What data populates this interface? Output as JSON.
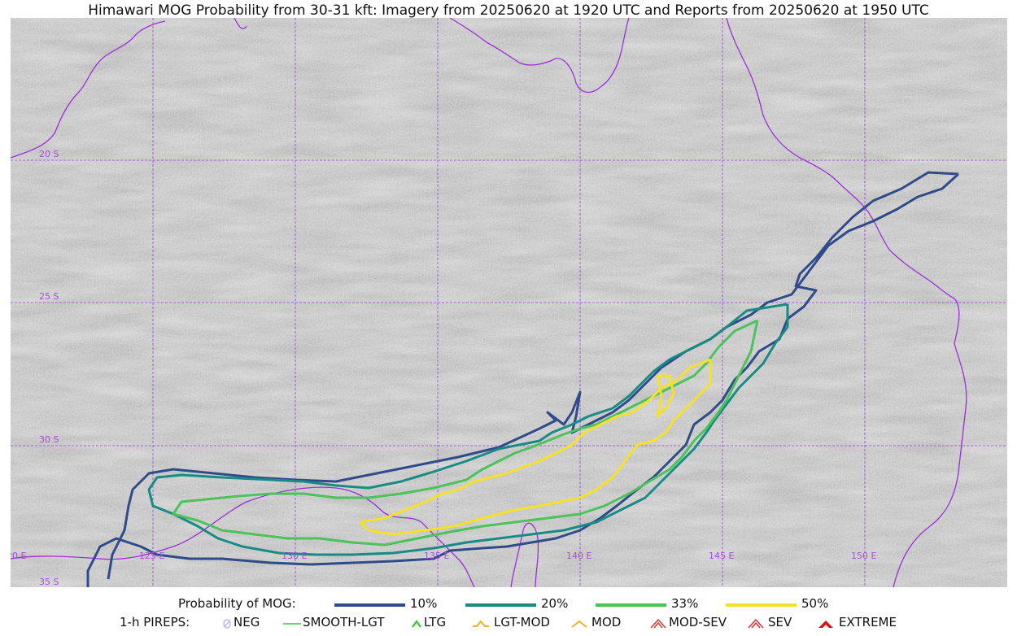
{
  "title": "Himawari MOG Probability from 30-31 kft: Imagery from 20250620 at 1920 UTC and Reports from 20250620 at 1950 UTC",
  "map": {
    "lat_labels": [
      "20 S",
      "25 S",
      "30 S",
      "35 S"
    ],
    "lon_labels": [
      "120 E",
      "125 E",
      "130 E",
      "135 E",
      "140 E",
      "145 E",
      "150 E"
    ],
    "gridline_color": "#9b3fd4",
    "coastline_color": "#9b30d9"
  },
  "probability_legend": {
    "label": "Probability of MOG:",
    "levels": [
      {
        "label": "10%",
        "color": "#2f4b8a"
      },
      {
        "label": "20%",
        "color": "#1a8a84"
      },
      {
        "label": "33%",
        "color": "#4cc35a"
      },
      {
        "label": "50%",
        "color": "#f5e12a"
      }
    ]
  },
  "pireps_legend": {
    "label": "1-h PIREPS:",
    "items": [
      {
        "label": "NEG",
        "icon": "neg-icon",
        "color": "#b9b9f0"
      },
      {
        "label": "SMOOTH-LGT",
        "icon": "line-icon",
        "color": "#33cc33"
      },
      {
        "label": "LTG",
        "icon": "chevron-icon",
        "color": "#22cc22"
      },
      {
        "label": "LGT-MOD",
        "icon": "caret-flat-icon",
        "color": "#f0b020"
      },
      {
        "label": "MOD",
        "icon": "caret-icon",
        "color": "#f0b020"
      },
      {
        "label": "MOD-SEV",
        "icon": "double-caret-icon",
        "color": "#e03030"
      },
      {
        "label": "SEV",
        "icon": "double-caret-icon",
        "color": "#e03030"
      },
      {
        "label": "EXTREME",
        "icon": "filled-caret-icon",
        "color": "#e01010"
      }
    ]
  }
}
